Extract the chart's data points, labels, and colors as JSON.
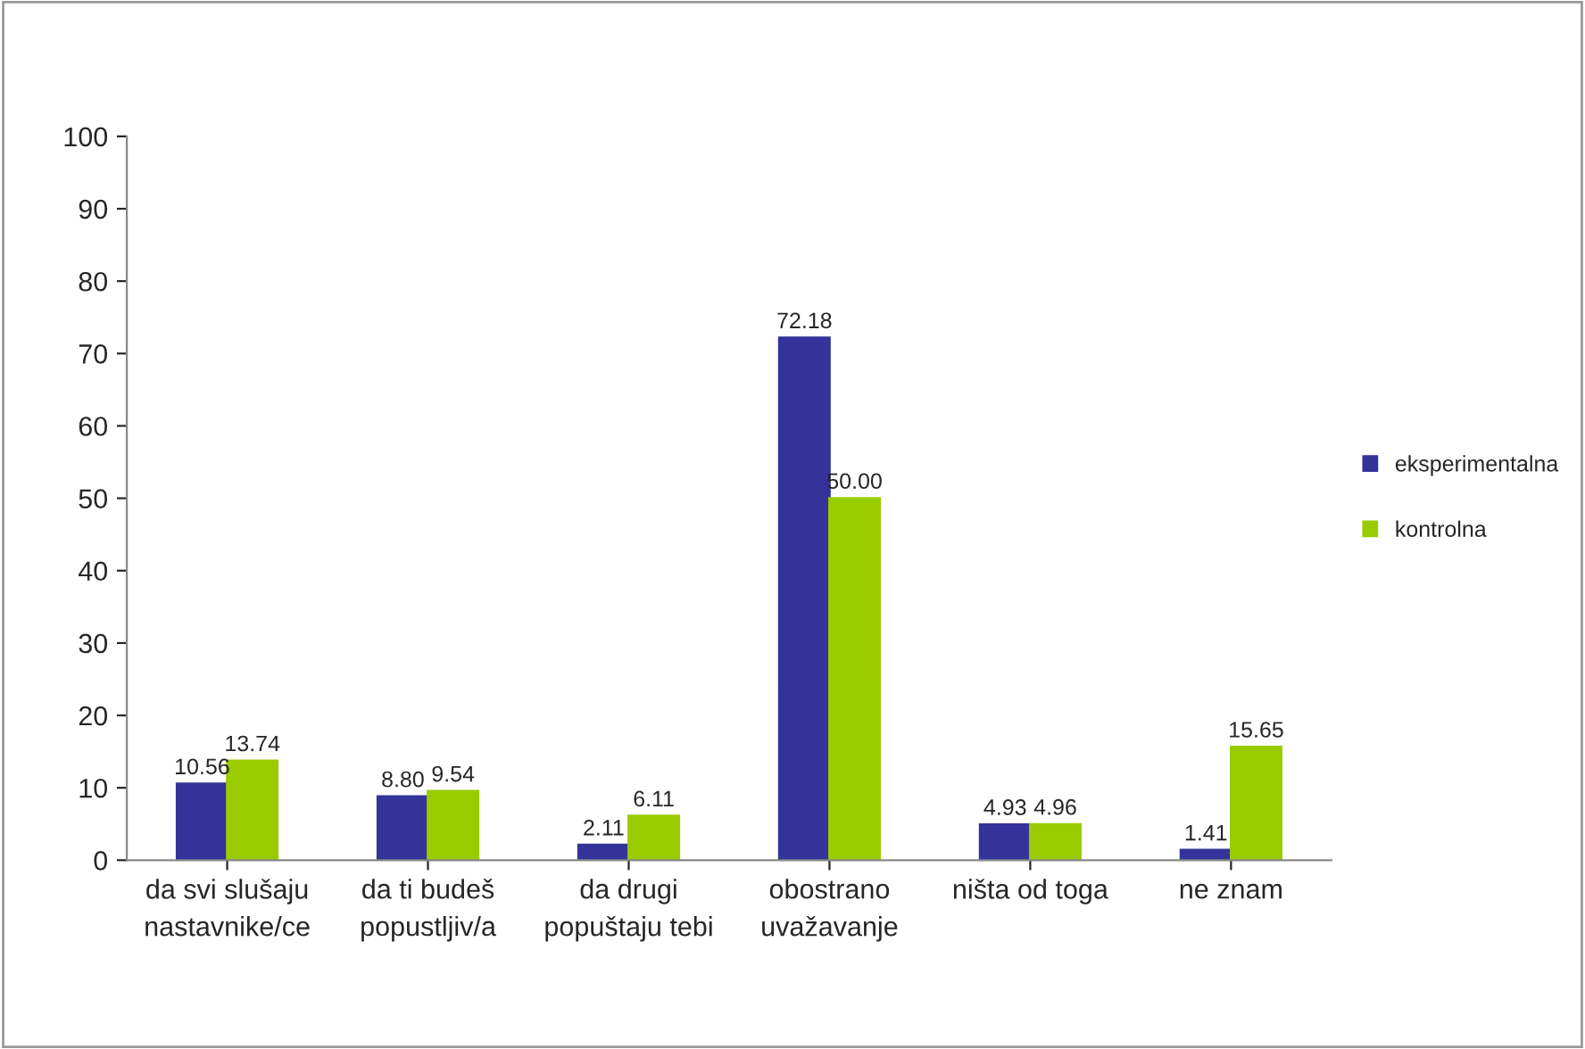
{
  "chart_data": {
    "type": "bar",
    "categories": [
      "da svi slušaju\nnastavnike/ce",
      "da ti budeš\npopustljiv/a",
      "da drugi\npopuštaju tebi",
      "obostrano\nuvažavanje",
      "ništa od toga",
      "ne znam"
    ],
    "series": [
      {
        "name": "eksperimentalna",
        "color": "#333399",
        "values": [
          10.56,
          8.8,
          2.11,
          72.18,
          4.93,
          1.41
        ],
        "value_labels": [
          "10.56",
          "8.80",
          "2.11",
          "72.18",
          "4.93",
          "1.41"
        ]
      },
      {
        "name": "kontrolna",
        "color": "#99cc00",
        "values": [
          13.74,
          9.54,
          6.11,
          50.0,
          4.96,
          15.65
        ],
        "value_labels": [
          "13.74",
          "9.54",
          "6.11",
          "50.00",
          "4.96",
          "15.65"
        ]
      }
    ],
    "ylim": [
      0,
      100
    ],
    "yticks": [
      0,
      10,
      20,
      30,
      40,
      50,
      60,
      70,
      80,
      90,
      100
    ],
    "grid": false,
    "legend": "right"
  }
}
